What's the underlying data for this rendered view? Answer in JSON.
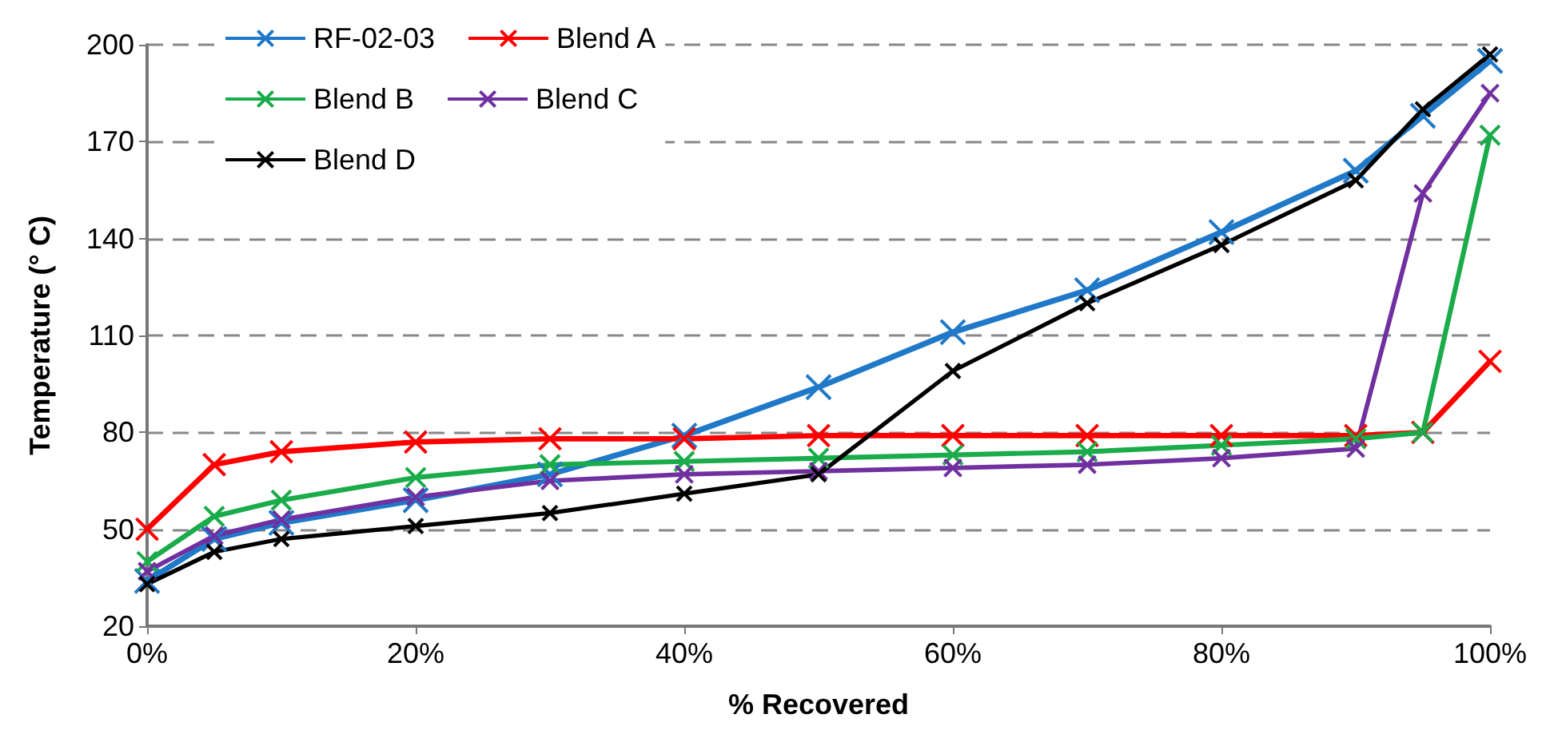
{
  "chart_data": {
    "type": "line",
    "xlabel": "% Recovered",
    "ylabel": "Temperature (° C)",
    "x": [
      0,
      5,
      10,
      20,
      30,
      40,
      50,
      60,
      70,
      80,
      90,
      95,
      100
    ],
    "xlim": [
      0,
      100
    ],
    "xticks": [
      {
        "value": 0,
        "label": "0%"
      },
      {
        "value": 20,
        "label": "20%"
      },
      {
        "value": 40,
        "label": "40%"
      },
      {
        "value": 60,
        "label": "60%"
      },
      {
        "value": 80,
        "label": "80%"
      },
      {
        "value": 100,
        "label": "100%"
      }
    ],
    "ylim": [
      20,
      200
    ],
    "yticks": [
      20,
      50,
      80,
      110,
      140,
      170,
      200
    ],
    "grid": "y",
    "legend": "top left",
    "marker": "cross",
    "line_style": "solid",
    "series": [
      {
        "name": "RF-02-03",
        "color": "#1f78c8",
        "values": [
          34,
          47,
          52,
          59,
          67,
          79,
          94,
          111,
          124,
          142,
          161,
          178,
          195
        ]
      },
      {
        "name": "Blend A",
        "color": "#ff0000",
        "values": [
          50,
          70,
          74,
          77,
          78,
          78,
          79,
          79,
          79,
          79,
          79,
          80,
          102
        ]
      },
      {
        "name": "Blend B",
        "color": "#1aab4a",
        "values": [
          40,
          54,
          59,
          66,
          70,
          71,
          72,
          73,
          74,
          76,
          78,
          80,
          172
        ]
      },
      {
        "name": "Blend C",
        "color": "#7030a0",
        "values": [
          37,
          48,
          53,
          60,
          65,
          67,
          68,
          69,
          70,
          72,
          75,
          154,
          185
        ]
      },
      {
        "name": "Blend D",
        "color": "#000000",
        "values": [
          33,
          43,
          47,
          51,
          55,
          61,
          67,
          99,
          120,
          138,
          158,
          180,
          197
        ]
      }
    ]
  }
}
